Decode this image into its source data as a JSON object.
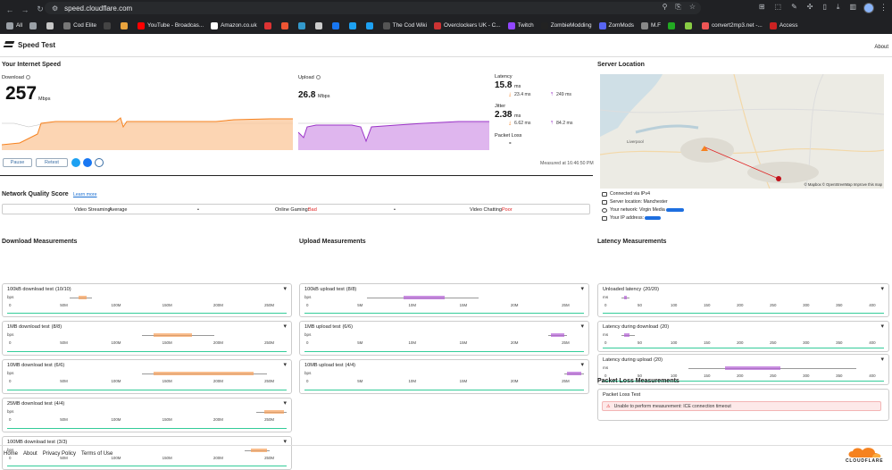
{
  "browser": {
    "url": "speed.cloudflare.com",
    "bookmarks": [
      {
        "label": "All",
        "color": "#9aa0a6"
      },
      {
        "label": "",
        "color": "#9aa0a6"
      },
      {
        "label": "",
        "color": "#c6c6c6"
      },
      {
        "label": "Cod Elite",
        "color": "#777"
      },
      {
        "label": "",
        "color": "#444"
      },
      {
        "label": "",
        "color": "#e8a33d"
      },
      {
        "label": "YouTube - Broadcas...",
        "color": "#ff0000"
      },
      {
        "label": "Amazon.co.uk",
        "color": "#ffffff"
      },
      {
        "label": "",
        "color": "#d33"
      },
      {
        "label": "",
        "color": "#e53"
      },
      {
        "label": "",
        "color": "#39c"
      },
      {
        "label": "",
        "color": "#ccc"
      },
      {
        "label": "",
        "color": "#1877f2"
      },
      {
        "label": "",
        "color": "#1da1f2"
      },
      {
        "label": "",
        "color": "#1da1f2"
      },
      {
        "label": "The Cod Wiki",
        "color": "#555"
      },
      {
        "label": "Overclockers UK - C...",
        "color": "#c33"
      },
      {
        "label": "Twitch",
        "color": "#9146ff"
      },
      {
        "label": "ZombieModding",
        "color": "#222"
      },
      {
        "label": "ZomMods",
        "color": "#5865f2"
      },
      {
        "label": "M.F",
        "color": "#888"
      },
      {
        "label": "",
        "color": "#2a2"
      },
      {
        "label": "",
        "color": "#8c4"
      },
      {
        "label": "convert2mp3.net -...",
        "color": "#e55"
      },
      {
        "label": "Access",
        "color": "#c22"
      }
    ]
  },
  "header": {
    "title": "Speed Test",
    "about": "About"
  },
  "speed": {
    "title": "Your Internet Speed",
    "download_label": "Download",
    "download_value": "257",
    "download_unit": "Mbps",
    "upload_label": "Upload",
    "upload_value": "26.8",
    "upload_unit": "Mbps",
    "latency_label": "Latency",
    "latency_value": "15.8",
    "latency_unit": "ms",
    "latency_down": "23.4 ms",
    "latency_up": "249 ms",
    "jitter_label": "Jitter",
    "jitter_value": "2.38",
    "jitter_unit": "ms",
    "jitter_down": "6.62 ms",
    "jitter_up": "84.2 ms",
    "packet_loss_label": "Packet Loss",
    "packet_loss_value": "-",
    "pause": "Pause",
    "retest": "Retest",
    "measured_at": "Measured at 16:46:50 PM",
    "accent_download": "#f6821f",
    "accent_upload": "#9b34c8"
  },
  "network_quality": {
    "title": "Network Quality Score",
    "learn_more": "Learn more",
    "video_streaming_label": "Video Streaming:",
    "video_streaming_value": "Average",
    "online_gaming_label": "Online Gaming:",
    "online_gaming_value": "Bad",
    "video_chatting_label": "Video Chatting:",
    "video_chatting_value": "Poor"
  },
  "server": {
    "title": "Server Location",
    "map_city": "Liverpool",
    "map_attrib": "© Mapbox © OpenStreetMap Improve this map",
    "connected": "Connected via IPv4",
    "location": "Server location: Manchester",
    "network": "Your network: Virgin Media",
    "ip": "Your IP address:"
  },
  "download_measurements": {
    "title": "Download Measurements",
    "unit": "bps",
    "ticks": [
      "0",
      "50M",
      "100M",
      "150M",
      "200M",
      "250M"
    ],
    "tests": [
      {
        "name": "100kB download test",
        "count": "(10/10)"
      },
      {
        "name": "1MB download test",
        "count": "(8/8)"
      },
      {
        "name": "10MB download test",
        "count": "(6/6)"
      },
      {
        "name": "25MB download test",
        "count": "(4/4)"
      },
      {
        "name": "100MB download test",
        "count": "(3/3)"
      }
    ]
  },
  "upload_measurements": {
    "title": "Upload Measurements",
    "unit": "bps",
    "ticks": [
      "0",
      "5M",
      "10M",
      "15M",
      "20M",
      "25M"
    ],
    "tests": [
      {
        "name": "100kB upload test",
        "count": "(8/8)"
      },
      {
        "name": "1MB upload test",
        "count": "(6/6)"
      },
      {
        "name": "10MB upload test",
        "count": "(4/4)"
      }
    ]
  },
  "latency_measurements": {
    "title": "Latency Measurements",
    "unit": "ms",
    "ticks": [
      "0",
      "50",
      "100",
      "150",
      "200",
      "250",
      "300",
      "350",
      "400"
    ],
    "tests": [
      {
        "name": "Unloaded latency",
        "count": "(20/20)"
      },
      {
        "name": "Latency during download",
        "count": "(20)"
      },
      {
        "name": "Latency during upload",
        "count": "(20)"
      }
    ]
  },
  "packet_loss": {
    "title": "Packet Loss Measurements",
    "test_name": "Packet Loss Test",
    "error": "Unable to perform measurement: ICE connection timeout"
  },
  "footer": {
    "links": [
      "Home",
      "About",
      "Privacy Policy",
      "Terms of Use"
    ],
    "brand": "CLOUDFLARE"
  }
}
